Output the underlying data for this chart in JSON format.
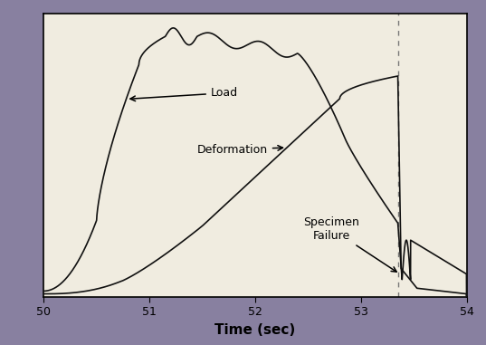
{
  "xlabel": "Time (sec)",
  "xlim": [
    50,
    54
  ],
  "ylim": [
    0,
    1
  ],
  "x_ticks": [
    50,
    51,
    52,
    53,
    54
  ],
  "failure_time": 53.35,
  "bg_color": "#f0ece0",
  "outer_bg": "#8880a0",
  "line_color": "#111111",
  "dashed_color": "#777777",
  "xlabel_fontsize": 11,
  "annot_fontsize": 9
}
